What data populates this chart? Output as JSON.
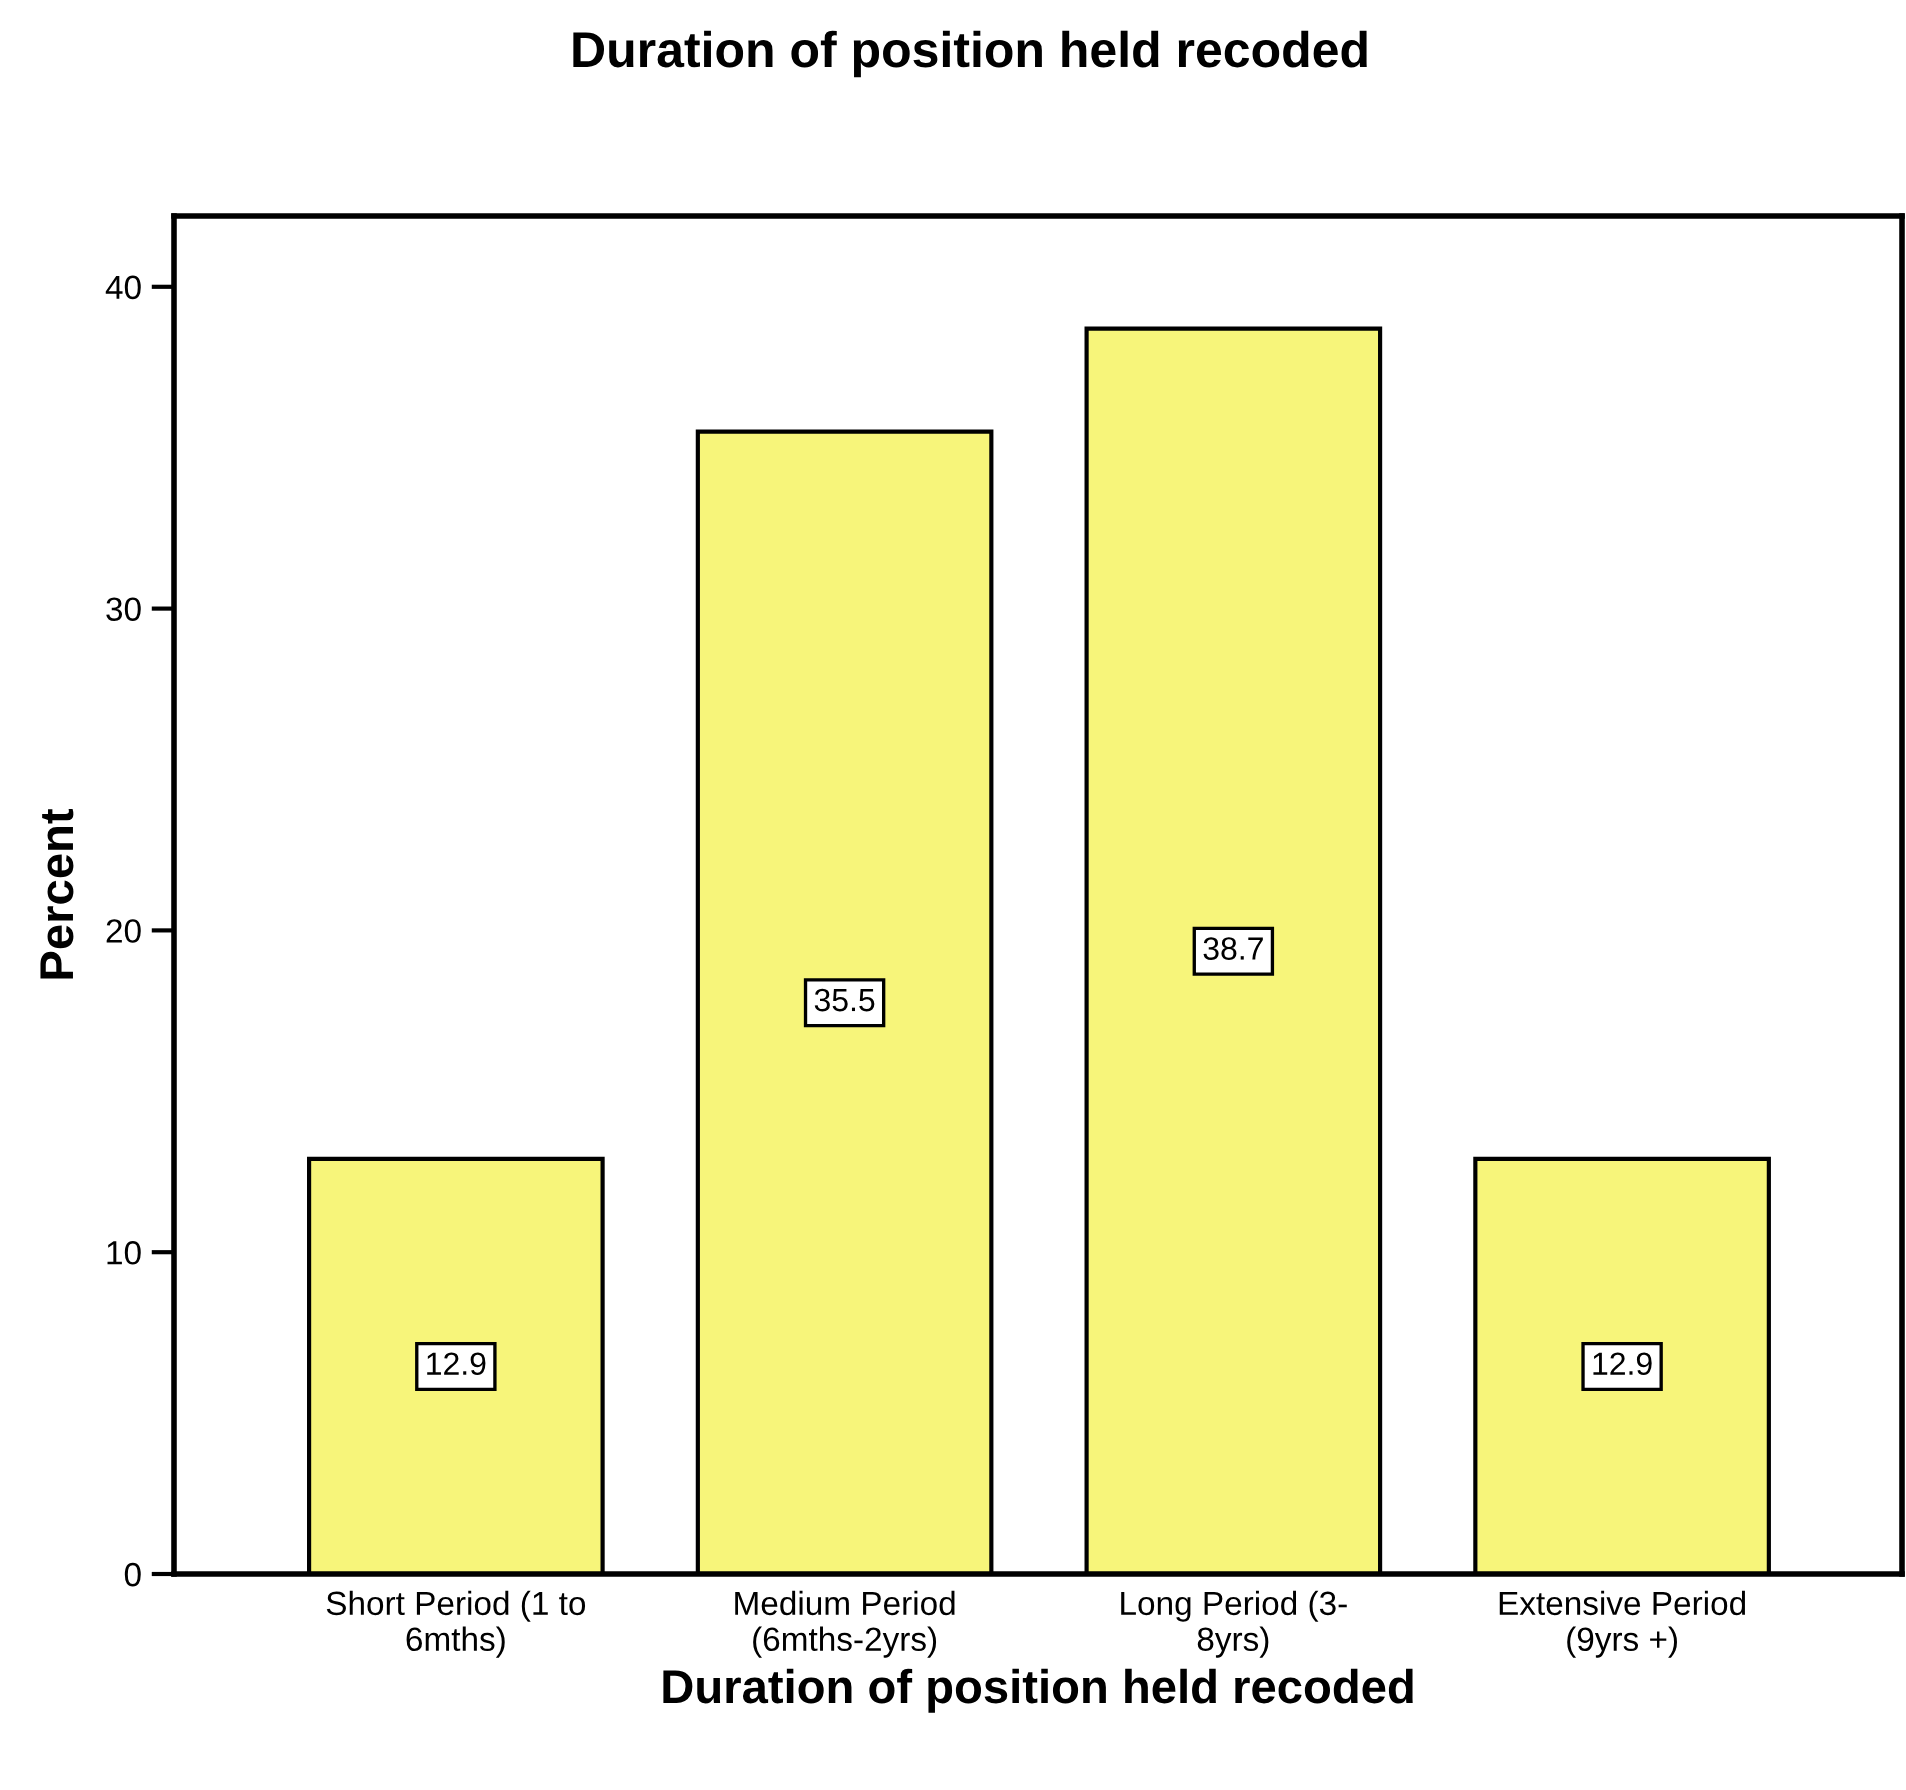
{
  "chart_data": {
    "type": "bar",
    "title": "Duration of position held recoded",
    "xlabel": "Duration of position held recoded",
    "ylabel": "Percent",
    "categories": [
      "Short Period (1 to\n6mths)",
      "Medium Period\n(6mths-2yrs)",
      "Long Period (3-\n8yrs)",
      "Extensive Period\n(9yrs +)"
    ],
    "values": [
      12.9,
      35.5,
      38.7,
      12.9
    ],
    "color": "#f7f57a",
    "ylim": [
      0,
      42.2
    ],
    "yticks": [
      0,
      10,
      20,
      30,
      40
    ],
    "grid": false,
    "legend": false,
    "data_labels": true
  }
}
